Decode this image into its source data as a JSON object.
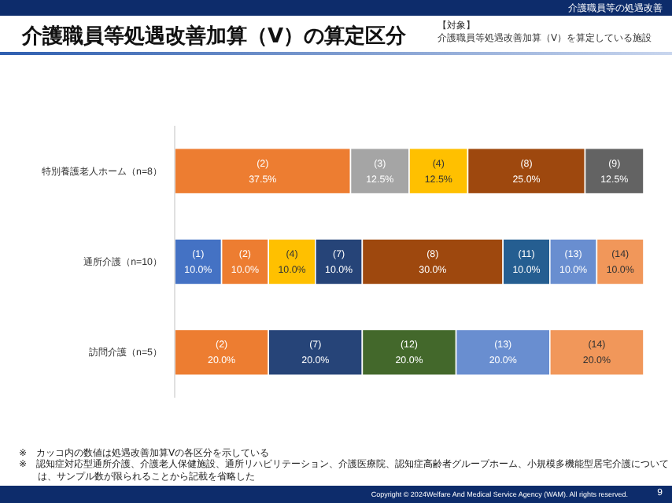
{
  "chart_data": {
    "type": "bar",
    "orientation": "horizontal",
    "stacked": true,
    "title": "介護職員等処遇改善加算（Ⅴ）の算定区分",
    "subtitle": "介護職員等処遇改善加算（Ⅴ）を算定している施設",
    "categories": [
      "特別養護老人ホーム（n=8）",
      "通所介護（n=10）",
      "訪問介護（n=5）"
    ],
    "series": [
      {
        "name": "(1)",
        "color": "#4472c4",
        "values": [
          null,
          10.0,
          null
        ],
        "value_labels": [
          null,
          "10.0%",
          null
        ]
      },
      {
        "name": "(2)",
        "color": "#ed7d31",
        "values": [
          37.5,
          10.0,
          20.0
        ],
        "value_labels": [
          "37.5%",
          "10.0%",
          "20.0%"
        ]
      },
      {
        "name": "(3)",
        "color": "#a5a5a5",
        "values": [
          12.5,
          null,
          null
        ],
        "value_labels": [
          "12.5%",
          null,
          null
        ]
      },
      {
        "name": "(4)",
        "color": "#ffc000",
        "values": [
          12.5,
          10.0,
          null
        ],
        "value_labels": [
          "12.5%",
          "10.0%",
          null
        ]
      },
      {
        "name": "(7)",
        "color": "#264478",
        "values": [
          null,
          10.0,
          20.0
        ],
        "value_labels": [
          null,
          "10.0%",
          "20.0%"
        ]
      },
      {
        "name": "(8)",
        "color": "#9e480e",
        "values": [
          25.0,
          30.0,
          null
        ],
        "value_labels": [
          "25.0%",
          "30.0%",
          null
        ]
      },
      {
        "name": "(9)",
        "color": "#636363",
        "values": [
          12.5,
          null,
          null
        ],
        "value_labels": [
          "12.5%",
          null,
          null
        ]
      },
      {
        "name": "(11)",
        "color": "#255e91",
        "values": [
          null,
          10.0,
          null
        ],
        "value_labels": [
          null,
          "10.0%",
          null
        ]
      },
      {
        "name": "(12)",
        "color": "#43682b",
        "values": [
          null,
          null,
          20.0
        ],
        "value_labels": [
          null,
          null,
          "20.0%"
        ]
      },
      {
        "name": "(13)",
        "color": "#698ed0",
        "values": [
          null,
          10.0,
          20.0
        ],
        "value_labels": [
          null,
          "10.0%",
          "20.0%"
        ]
      },
      {
        "name": "(14)",
        "color": "#f1975a",
        "values": [
          null,
          10.0,
          20.0
        ],
        "value_labels": [
          null,
          "10.0%",
          "20.0%"
        ]
      }
    ],
    "annotations": [
      "介護職員等の処遇改善",
      "※　カッコ内の数値は処遇改善加算Ⅴの各区分を示している",
      "※　認知症対応型通所介護、介護老人保健施設、通所リハビリテーション、介護医療院、認知症高齢者グループホーム、小規模多機能型居宅介護については、サンプル数が限られることから記載を省略した",
      "Copyright © 2024Welfare And Medical Service Agency (WAM). All rights reserved.",
      "9",
      "【対象】"
    ]
  }
}
